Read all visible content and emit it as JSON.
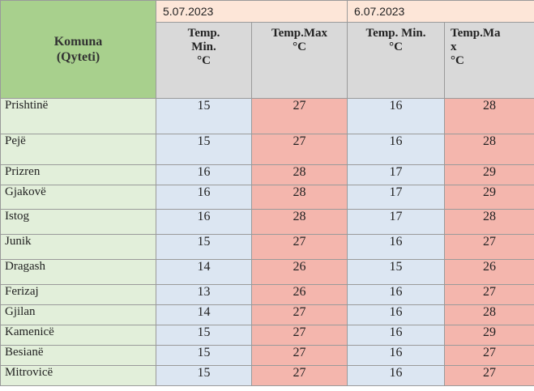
{
  "table": {
    "komuna_header": [
      "Komuna",
      "(Qyteti)"
    ],
    "dates": [
      "5.07.2023",
      "6.07.2023"
    ],
    "subheaders": [
      [
        "Temp.",
        "Min.",
        "°C"
      ],
      [
        "Temp.Max",
        "°C"
      ],
      [
        "Temp. Min.",
        "°C"
      ],
      [
        "Temp.Ma",
        "x",
        "°C"
      ]
    ],
    "rows": [
      {
        "city": "Prishtinë",
        "min1": "15",
        "max1": "27",
        "min2": "16",
        "max2": "28"
      },
      {
        "city": "Pejë",
        "min1": "15",
        "max1": "27",
        "min2": "16",
        "max2": "28"
      },
      {
        "city": "Prizren",
        "min1": "16",
        "max1": "28",
        "min2": "17",
        "max2": "29"
      },
      {
        "city": "Gjakovë",
        "min1": "16",
        "max1": "28",
        "min2": "17",
        "max2": "29"
      },
      {
        "city": "Istog",
        "min1": "16",
        "max1": "28",
        "min2": "17",
        "max2": "28"
      },
      {
        "city": "Junik",
        "min1": "15",
        "max1": "27",
        "min2": "16",
        "max2": "27"
      },
      {
        "city": "Dragash",
        "min1": "14",
        "max1": "26",
        "min2": "15",
        "max2": "26"
      },
      {
        "city": "Ferizaj",
        "min1": "13",
        "max1": "26",
        "min2": "16",
        "max2": "27"
      },
      {
        "city": "Gjilan",
        "min1": "14",
        "max1": "27",
        "min2": "16",
        "max2": "28"
      },
      {
        "city": "Kamenicë",
        "min1": "15",
        "max1": "27",
        "min2": "16",
        "max2": "29"
      },
      {
        "city": "Besianë",
        "min1": "15",
        "max1": "27",
        "min2": "16",
        "max2": "27"
      },
      {
        "city": "Mitrovicë",
        "min1": "15",
        "max1": "27",
        "min2": "16",
        "max2": "27"
      }
    ]
  },
  "colors": {
    "komuna_bg": "#a8d08d",
    "date_bg": "#fde6d8",
    "subheader_bg": "#d9d9d9",
    "city_bg": "#e2efda",
    "min_bg": "#dce6f2",
    "max_bg": "#f4b6ad"
  }
}
